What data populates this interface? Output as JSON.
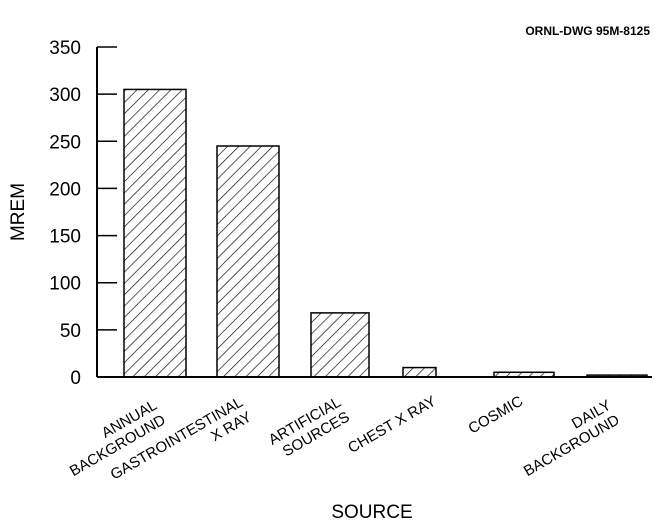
{
  "drawing_id": "ORNL-DWG 95M-8125",
  "chart_data": {
    "type": "bar",
    "categories": [
      [
        "ANNUAL",
        "BACKGROUND"
      ],
      [
        "GASTROINTESTINAL",
        "X RAY"
      ],
      [
        "ARTIFICIAL",
        "SOURCES"
      ],
      [
        "CHEST X RAY"
      ],
      [
        "COSMIC"
      ],
      [
        "DAILY",
        "BACKGROUND"
      ]
    ],
    "values": [
      305,
      245,
      68,
      10,
      5,
      2
    ],
    "xlabel": "SOURCE",
    "ylabel": "MREM",
    "ylim": [
      0,
      350
    ],
    "yticks": [
      0,
      50,
      100,
      150,
      200,
      250,
      300,
      350
    ],
    "grid": false,
    "bar_pattern": "diagonal-hatch"
  }
}
